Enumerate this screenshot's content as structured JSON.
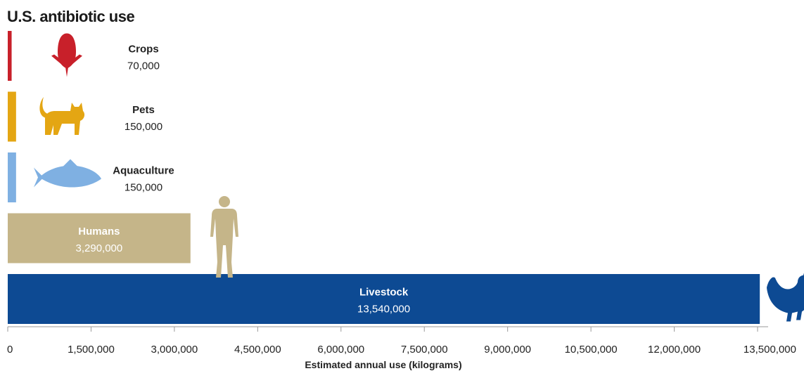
{
  "chart_data": {
    "type": "bar",
    "orientation": "horizontal",
    "title": "U.S. antibiotic use",
    "xlabel": "Estimated annual use (kilograms)",
    "ylabel": "",
    "xlim": [
      0,
      13500000
    ],
    "ticks": [
      0,
      1500000,
      3000000,
      4500000,
      6000000,
      7500000,
      9000000,
      10500000,
      12000000,
      13500000
    ],
    "tick_labels": [
      "0",
      "1,500,000",
      "3,000,000",
      "4,500,000",
      "6,000,000",
      "7,500,000",
      "9,000,000",
      "10,500,000",
      "12,000,000",
      "13,500,000"
    ],
    "grid": false,
    "bars": [
      {
        "category": "Crops",
        "value": 70000,
        "value_label": "70,000",
        "color": "#c8202a",
        "icon": "corn-icon",
        "label_color": "#222222"
      },
      {
        "category": "Pets",
        "value": 150000,
        "value_label": "150,000",
        "color": "#e4a613",
        "icon": "cat-icon",
        "label_color": "#222222"
      },
      {
        "category": "Aquaculture",
        "value": 150000,
        "value_label": "150,000",
        "color": "#7fb0e2",
        "icon": "fish-icon",
        "label_color": "#222222"
      },
      {
        "category": "Humans",
        "value": 3290000,
        "value_label": "3,290,000",
        "color": "#c5b589",
        "icon": "human-icon",
        "label_color": "#ffffff"
      },
      {
        "category": "Livestock",
        "value": 13540000,
        "value_label": "13,540,000",
        "color": "#0d4a93",
        "icon": "chicken-icon",
        "label_color": "#ffffff"
      }
    ]
  }
}
